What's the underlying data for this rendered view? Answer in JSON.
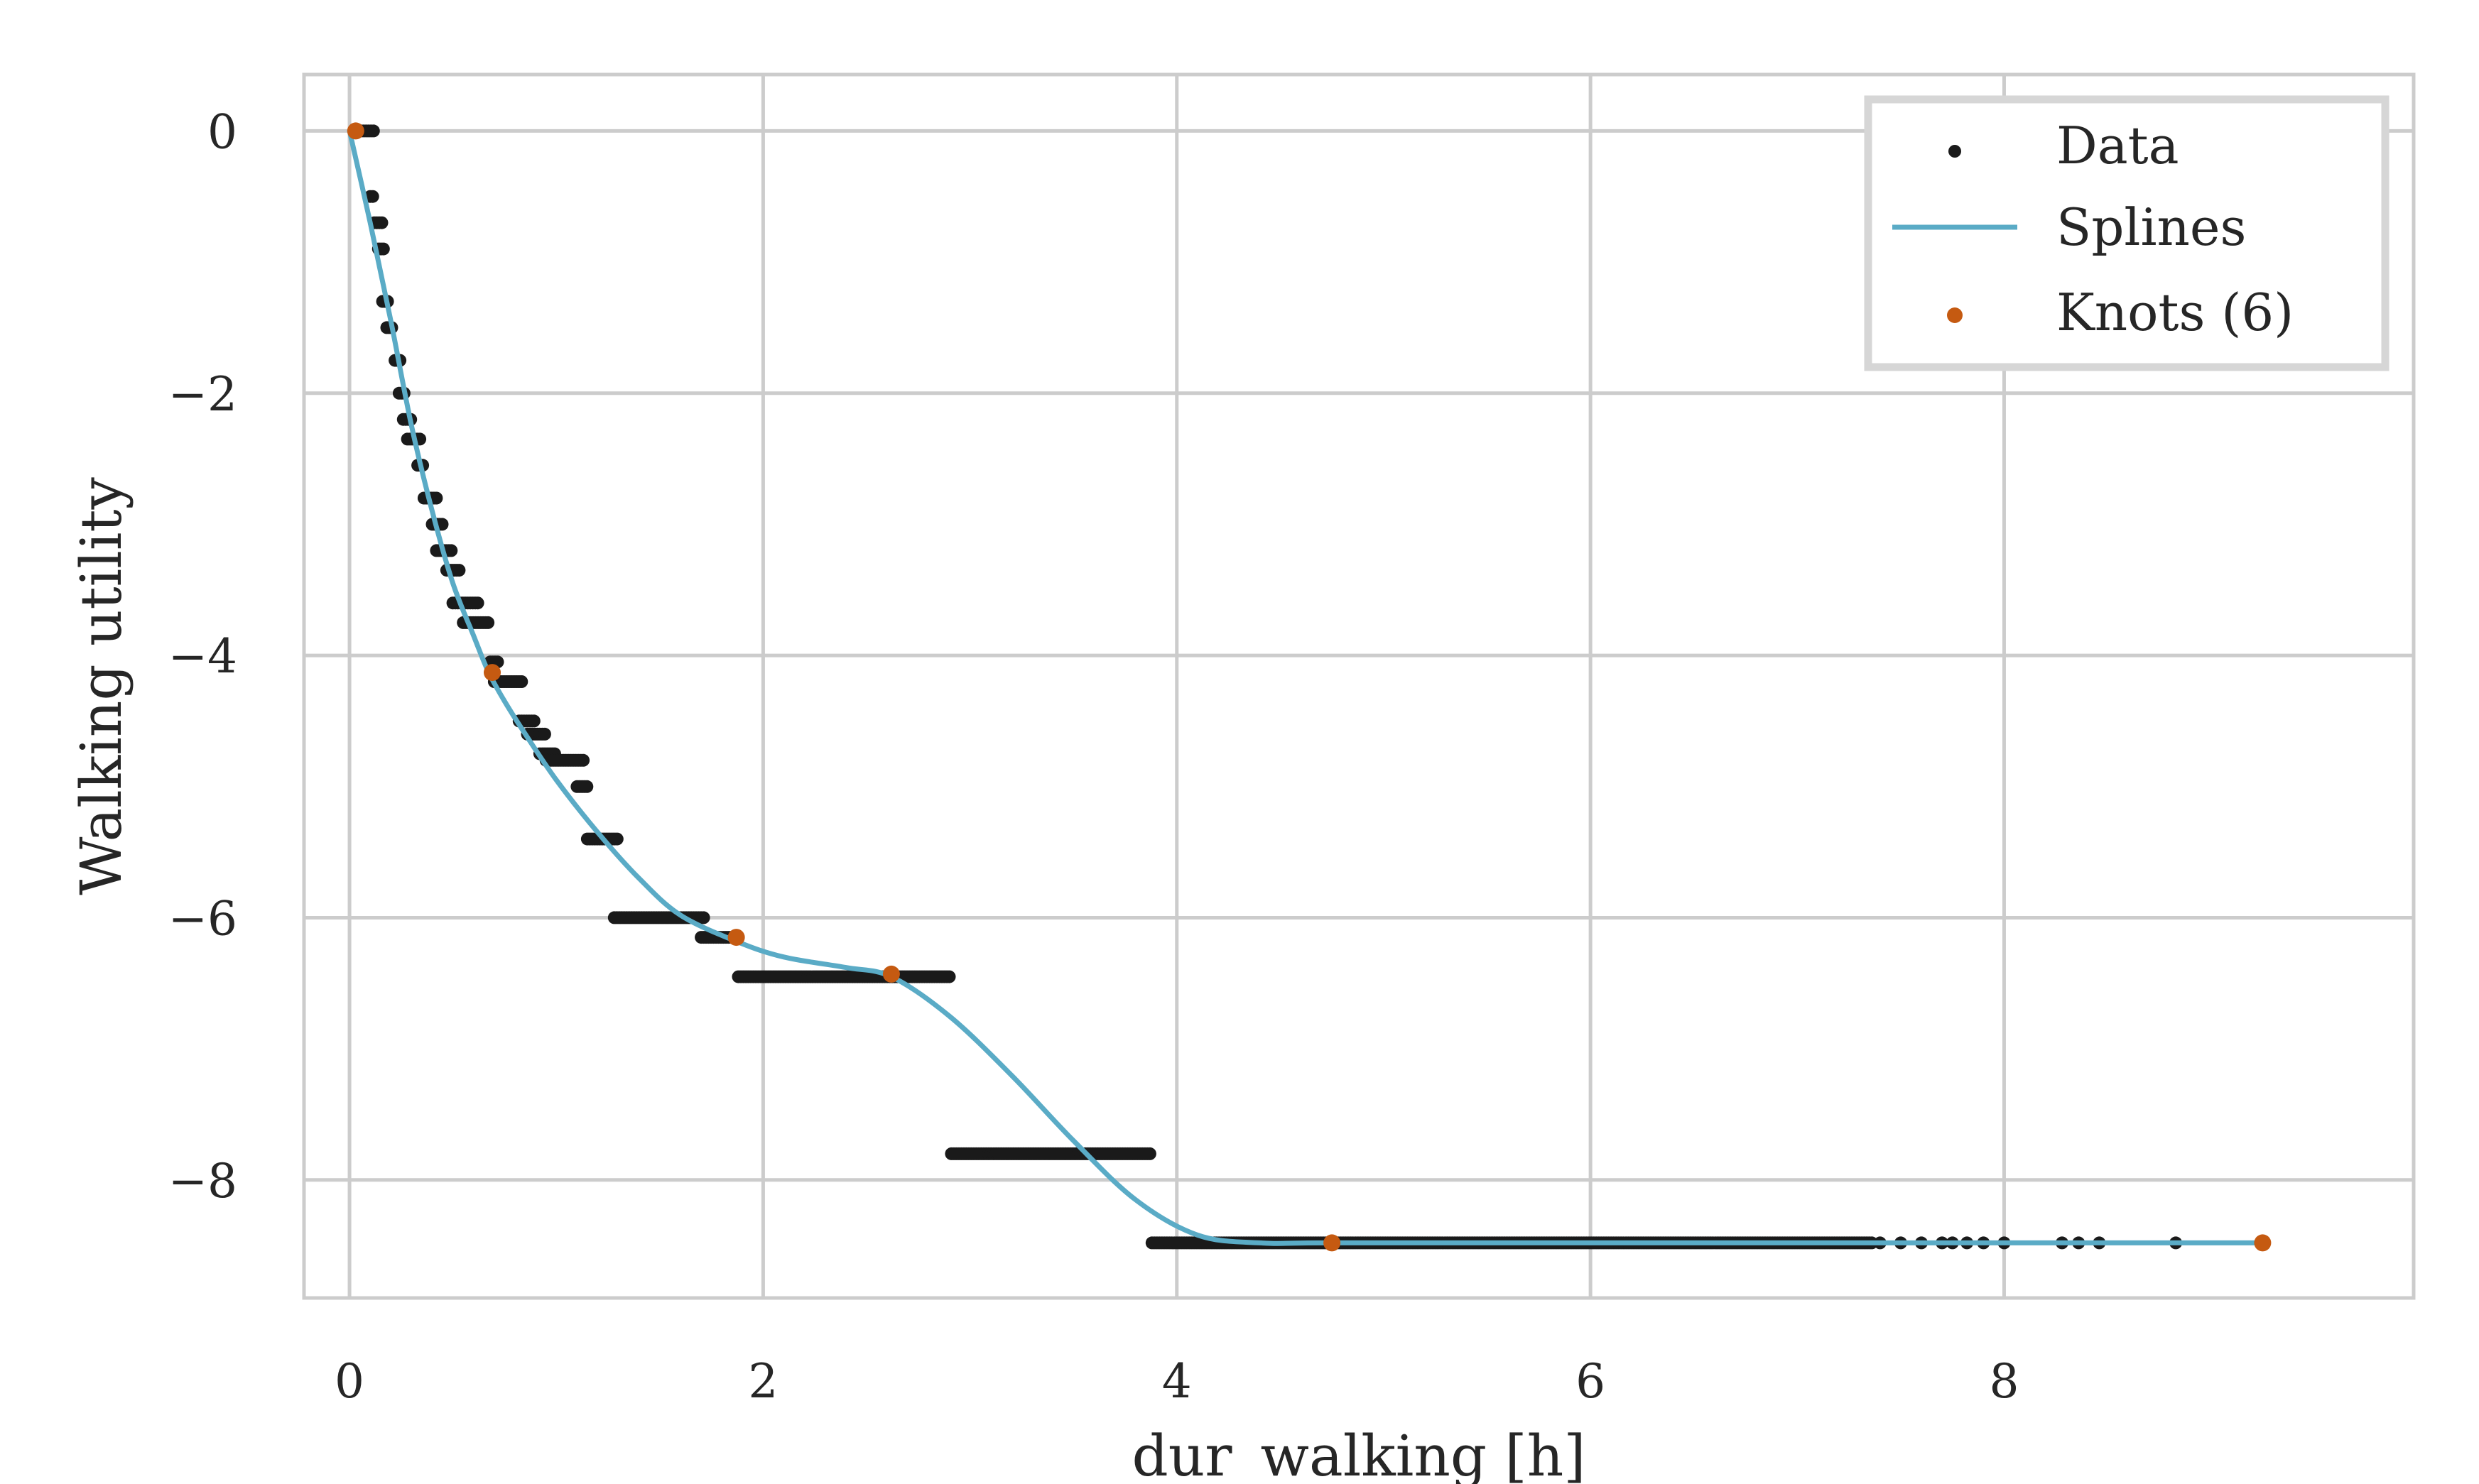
{
  "chart_data": {
    "type": "scatter",
    "xlabel": "dur_walking [h]",
    "ylabel": "Walking utility",
    "xlim": [
      -0.22,
      9.98
    ],
    "ylim": [
      -8.9,
      0.43
    ],
    "xticks": [
      0,
      2,
      4,
      6,
      8
    ],
    "yticks": [
      0,
      -2,
      -4,
      -6,
      -8
    ],
    "xtick_labels": [
      "0",
      "2",
      "4",
      "6",
      "8"
    ],
    "ytick_labels": [
      "0",
      "−2",
      "−4",
      "−6",
      "−8"
    ],
    "grid": true,
    "legend_position": "top-right",
    "colors": {
      "data": "#1a1a1a",
      "splines": "#5aabc6",
      "knots": "#c55a11",
      "grid": "#cccccc",
      "frame": "#cccccc"
    },
    "series": [
      {
        "name": "Data",
        "kind": "scatter",
        "segments": [
          {
            "x": [
              0.02,
              0.12
            ],
            "y": 0.0
          },
          {
            "x": [
              0.1,
              0.12
            ],
            "y": -0.5
          },
          {
            "x": [
              0.12,
              0.16
            ],
            "y": -0.7
          },
          {
            "x": [
              0.14,
              0.17
            ],
            "y": -0.9
          },
          {
            "x": [
              0.16,
              0.19
            ],
            "y": -1.3
          },
          {
            "x": [
              0.18,
              0.21
            ],
            "y": -1.5
          },
          {
            "x": [
              0.22,
              0.25
            ],
            "y": -1.75
          },
          {
            "x": [
              0.24,
              0.27
            ],
            "y": -2.0
          },
          {
            "x": [
              0.26,
              0.3
            ],
            "y": -2.2
          },
          {
            "x": [
              0.28,
              0.34
            ],
            "y": -2.35
          },
          {
            "x": [
              0.33,
              0.36
            ],
            "y": -2.55
          },
          {
            "x": [
              0.36,
              0.43
            ],
            "y": -2.8
          },
          {
            "x": [
              0.4,
              0.45
            ],
            "y": -3.0
          },
          {
            "x": [
              0.42,
              0.5
            ],
            "y": -3.2
          },
          {
            "x": [
              0.47,
              0.54
            ],
            "y": -3.35
          },
          {
            "x": [
              0.5,
              0.62
            ],
            "y": -3.6
          },
          {
            "x": [
              0.55,
              0.68
            ],
            "y": -3.75
          },
          {
            "x": [
              0.68,
              0.72
            ],
            "y": -4.05
          },
          {
            "x": [
              0.7,
              0.84
            ],
            "y": -4.2
          },
          {
            "x": [
              0.82,
              0.9
            ],
            "y": -4.5
          },
          {
            "x": [
              0.86,
              0.95
            ],
            "y": -4.6
          },
          {
            "x": [
              0.92,
              1.0
            ],
            "y": -4.75
          },
          {
            "x": [
              0.95,
              1.13
            ],
            "y": -4.8
          },
          {
            "x": [
              1.1,
              1.15
            ],
            "y": -5.0
          },
          {
            "x": [
              1.15,
              1.3
            ],
            "y": -5.4
          },
          {
            "x": [
              1.28,
              1.72
            ],
            "y": -6.0
          },
          {
            "x": [
              1.7,
              1.88
            ],
            "y": -6.15
          },
          {
            "x": [
              1.88,
              2.91
            ],
            "y": -6.45
          },
          {
            "x": [
              2.91,
              3.88
            ],
            "y": -7.8
          },
          {
            "x": [
              3.88,
              7.36
            ],
            "y": -8.48
          }
        ],
        "sparse_points": {
          "x": [
            7.4,
            7.5,
            7.6,
            7.7,
            7.75,
            7.82,
            7.9,
            8.0,
            8.28,
            8.36,
            8.46,
            8.83
          ],
          "y": -8.48
        }
      },
      {
        "name": "Splines",
        "kind": "line",
        "x": [
          0.0,
          0.1,
          0.2,
          0.3,
          0.4,
          0.5,
          0.6,
          0.67,
          0.75,
          0.85,
          1.0,
          1.2,
          1.4,
          1.6,
          1.87,
          2.1,
          2.4,
          2.62,
          2.9,
          3.2,
          3.5,
          3.8,
          4.1,
          4.4,
          4.75,
          6.0,
          7.5,
          9.25
        ],
        "y": [
          0.0,
          -0.7,
          -1.45,
          -2.25,
          -2.9,
          -3.45,
          -3.85,
          -4.12,
          -4.35,
          -4.6,
          -4.95,
          -5.35,
          -5.7,
          -5.98,
          -6.18,
          -6.3,
          -6.38,
          -6.45,
          -6.75,
          -7.2,
          -7.7,
          -8.15,
          -8.42,
          -8.48,
          -8.48,
          -8.48,
          -8.48,
          -8.48
        ]
      },
      {
        "name": "Knots (6)",
        "kind": "scatter",
        "x": [
          0.03,
          0.69,
          1.87,
          2.62,
          4.75,
          9.25
        ],
        "y": [
          0.0,
          -4.13,
          -6.15,
          -6.43,
          -8.48,
          -8.48
        ]
      }
    ],
    "legend": [
      "Data",
      "Splines",
      "Knots (6)"
    ]
  }
}
